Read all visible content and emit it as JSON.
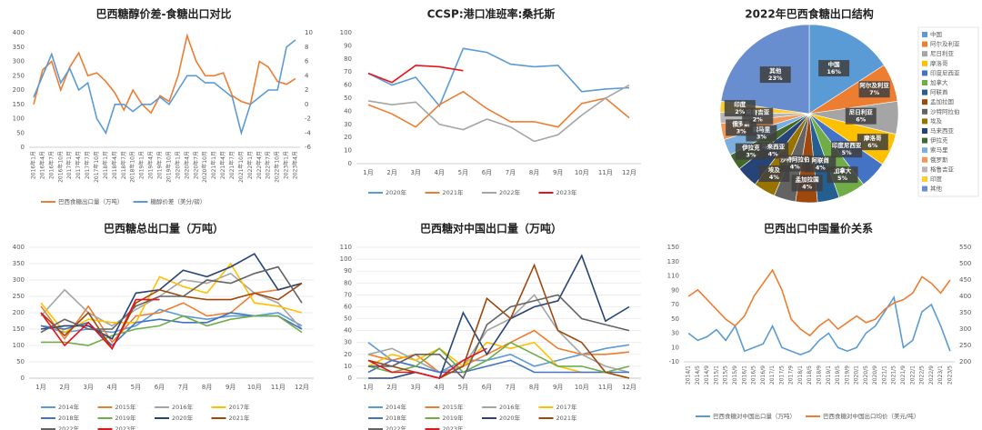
{
  "chart_data": [
    {
      "type": "line",
      "title": "巴西糖醇价差-食糖出口对比",
      "categories": [
        "2016年1月",
        "2016年4月",
        "2016年7月",
        "2016年10月",
        "2017年1月",
        "2017年4月",
        "2017年7月",
        "2017年10月",
        "2018年1月",
        "2018年4月",
        "2018年7月",
        "2018年10月",
        "2019年1月",
        "2019年4月",
        "2019年7月",
        "2019年10月",
        "2020年1月",
        "2020年4月",
        "2020年7月",
        "2020年10月",
        "2021年1月",
        "2021年4月",
        "2021年7月",
        "2021年10月",
        "2022年1月",
        "2022年4月",
        "2022年7月",
        "2022年10月",
        "2023年1月",
        "2023年4月"
      ],
      "ylim": [
        0,
        400
      ],
      "yticks": [
        0,
        50,
        100,
        150,
        200,
        250,
        300,
        350,
        400
      ],
      "y2lim": [
        -6,
        10
      ],
      "y2ticks": [
        -6,
        -4,
        -2,
        0,
        2,
        4,
        6,
        8,
        10
      ],
      "series": [
        {
          "name": "巴西食糖出口量（万吨）",
          "color": "#ed7d31",
          "values": [
            150,
            270,
            300,
            200,
            280,
            330,
            250,
            260,
            230,
            190,
            130,
            200,
            150,
            120,
            180,
            160,
            250,
            390,
            300,
            250,
            250,
            260,
            180,
            160,
            150,
            300,
            280,
            230,
            220,
            240
          ]
        },
        {
          "name": "糖醇价差（美分/磅）",
          "color": "#5b9bd5",
          "axis": "y2",
          "values": [
            1,
            4,
            7,
            3,
            5,
            2,
            3,
            -2,
            -4,
            0,
            0,
            -1,
            0,
            0,
            1,
            0,
            2,
            4,
            4,
            3,
            3,
            2,
            1,
            -4,
            0,
            1,
            2,
            2,
            8,
            9
          ]
        }
      ]
    },
    {
      "type": "line",
      "title": "CCSP:港口准班率:桑托斯",
      "categories": [
        "1月",
        "2月",
        "3月",
        "4月",
        "5月",
        "6月",
        "7月",
        "8月",
        "9月",
        "10月",
        "11月",
        "12月"
      ],
      "ylim": [
        0,
        100
      ],
      "yticks": [
        0,
        10,
        20,
        30,
        40,
        50,
        60,
        70,
        80,
        90,
        100
      ],
      "series": [
        {
          "name": "2020年",
          "color": "#5b9bd5",
          "values": [
            69,
            60,
            66,
            44,
            88,
            85,
            76,
            74,
            75,
            55,
            57,
            58
          ]
        },
        {
          "name": "2021年",
          "color": "#ed7d31",
          "values": [
            45,
            38,
            28,
            45,
            55,
            42,
            32,
            32,
            28,
            46,
            50,
            35
          ]
        },
        {
          "name": "2022年",
          "color": "#a5a5a5",
          "values": [
            48,
            45,
            47,
            30,
            26,
            34,
            28,
            17,
            22,
            37,
            50,
            60
          ]
        },
        {
          "name": "2023年",
          "color": "#e8141c",
          "values": [
            69,
            62,
            75,
            74,
            71,
            null,
            null,
            null,
            null,
            null,
            null,
            null
          ]
        }
      ]
    },
    {
      "type": "pie",
      "title": "2022年巴西食糖出口结构",
      "categories": [
        "中国",
        "阿尔及利亚",
        "尼日利亚",
        "摩洛哥",
        "印度尼西亚",
        "加拿大",
        "阿联酋",
        "孟加拉国",
        "沙特阿拉伯",
        "埃及",
        "马来西亚",
        "伊拉克",
        "索马里",
        "俄罗斯",
        "格鲁吉亚",
        "印度",
        "其他"
      ],
      "values": [
        16,
        7,
        6,
        6,
        5,
        5,
        4,
        4,
        4,
        4,
        4,
        3,
        3,
        3,
        2,
        2,
        23
      ],
      "value_labels": [
        "16%",
        "7%",
        "6%",
        "6%",
        "5%",
        "5%",
        "4%",
        "4%",
        "4%",
        "4%",
        "4%",
        "3%",
        "3%",
        "3%",
        "2%",
        "2%",
        "23%"
      ],
      "colors": [
        "#5b9bd5",
        "#ed7d31",
        "#a5a5a5",
        "#ffc000",
        "#4472c4",
        "#70ad47",
        "#255e91",
        "#9e480e",
        "#636363",
        "#997300",
        "#264478",
        "#43682b",
        "#7cafdd",
        "#f1975a",
        "#b7b7b7",
        "#ffcd33",
        "#698ed0"
      ]
    },
    {
      "type": "line",
      "title": "巴西糖总出口量（万吨）",
      "grid": true,
      "categories": [
        "1月",
        "2月",
        "3月",
        "4月",
        "5月",
        "6月",
        "7月",
        "8月",
        "9月",
        "10月",
        "11月",
        "12月"
      ],
      "ylim": [
        0,
        400
      ],
      "yticks": [
        0,
        50,
        100,
        150,
        200,
        250,
        300,
        350,
        400
      ],
      "series": [
        {
          "name": "2014年",
          "color": "#5b9bd5",
          "values": [
            160,
            140,
            150,
            140,
            160,
            210,
            190,
            180,
            190,
            190,
            200,
            160
          ]
        },
        {
          "name": "2015年",
          "color": "#ed7d31",
          "values": [
            220,
            120,
            220,
            110,
            190,
            200,
            230,
            190,
            200,
            260,
            270,
            290
          ]
        },
        {
          "name": "2016年",
          "color": "#a5a5a5",
          "values": [
            190,
            270,
            200,
            160,
            210,
            250,
            300,
            290,
            320,
            260,
            230,
            150
          ]
        },
        {
          "name": "2017年",
          "color": "#ffc000",
          "values": [
            230,
            140,
            180,
            170,
            170,
            310,
            280,
            260,
            350,
            230,
            220,
            200
          ]
        },
        {
          "name": "2018年",
          "color": "#4472c4",
          "values": [
            160,
            150,
            170,
            100,
            170,
            180,
            170,
            170,
            200,
            190,
            190,
            150
          ]
        },
        {
          "name": "2019年",
          "color": "#70ad47",
          "values": [
            110,
            110,
            100,
            130,
            150,
            160,
            190,
            160,
            180,
            190,
            190,
            140
          ]
        },
        {
          "name": "2020年",
          "color": "#264478",
          "values": [
            150,
            160,
            160,
            120,
            260,
            270,
            330,
            310,
            340,
            380,
            270,
            290
          ]
        },
        {
          "name": "2021年",
          "color": "#9e480e",
          "values": [
            200,
            130,
            200,
            90,
            230,
            270,
            250,
            240,
            240,
            260,
            240,
            290
          ]
        },
        {
          "name": "2022年",
          "color": "#636363",
          "values": [
            140,
            180,
            150,
            150,
            220,
            250,
            250,
            300,
            290,
            320,
            340,
            230
          ]
        },
        {
          "name": "2023年",
          "color": "#e8141c",
          "values": [
            200,
            100,
            170,
            90,
            240,
            240,
            null,
            null,
            null,
            null,
            null,
            null
          ]
        }
      ]
    },
    {
      "type": "line",
      "title": "巴西糖对中国出口量（万吨）",
      "grid": true,
      "categories": [
        "1月",
        "2月",
        "3月",
        "4月",
        "5月",
        "6月",
        "7月",
        "8月",
        "9月",
        "10月",
        "11月",
        "12月"
      ],
      "ylim": [
        0,
        110
      ],
      "yticks": [
        0,
        10,
        20,
        30,
        40,
        50,
        60,
        70,
        80,
        90,
        100,
        110
      ],
      "series": [
        {
          "name": "2014年",
          "color": "#5b9bd5",
          "values": [
            30,
            15,
            10,
            5,
            15,
            15,
            20,
            10,
            15,
            20,
            25,
            28
          ]
        },
        {
          "name": "2015年",
          "color": "#ed7d31",
          "values": [
            20,
            15,
            20,
            5,
            10,
            20,
            30,
            40,
            25,
            20,
            20,
            22
          ]
        },
        {
          "name": "2016年",
          "color": "#a5a5a5",
          "values": [
            20,
            25,
            15,
            5,
            10,
            40,
            50,
            70,
            40,
            20,
            10,
            5
          ]
        },
        {
          "name": "2017年",
          "color": "#ffc000",
          "values": [
            10,
            20,
            15,
            25,
            10,
            30,
            25,
            30,
            10,
            5,
            5,
            0
          ]
        },
        {
          "name": "2018年",
          "color": "#4472c4",
          "values": [
            5,
            15,
            10,
            5,
            5,
            10,
            15,
            5,
            5,
            5,
            5,
            5
          ]
        },
        {
          "name": "2019年",
          "color": "#70ad47",
          "values": [
            10,
            5,
            10,
            25,
            5,
            15,
            30,
            20,
            10,
            10,
            5,
            10
          ]
        },
        {
          "name": "2020年",
          "color": "#264478",
          "values": [
            0,
            0,
            5,
            0,
            55,
            20,
            50,
            60,
            65,
            103,
            48,
            60
          ]
        },
        {
          "name": "2021年",
          "color": "#9e480e",
          "values": [
            15,
            10,
            5,
            0,
            10,
            67,
            50,
            95,
            40,
            30,
            5,
            0
          ]
        },
        {
          "name": "2022年",
          "color": "#636363",
          "values": [
            10,
            10,
            20,
            20,
            0,
            45,
            60,
            65,
            70,
            50,
            45,
            40
          ]
        },
        {
          "name": "2023年",
          "color": "#e8141c",
          "values": [
            15,
            5,
            5,
            0,
            15,
            25,
            null,
            null,
            null,
            null,
            null,
            null
          ]
        }
      ]
    },
    {
      "type": "line",
      "title": "巴西出口中国量价关系",
      "categories": [
        "2014/1",
        "2014/5",
        "2014/9",
        "2015/1",
        "2015/5",
        "2015/9",
        "2016/1",
        "2016/5",
        "2016/9",
        "2017/1",
        "2017/5",
        "2017/9",
        "2018/1",
        "2018/5",
        "2018/9",
        "2019/1",
        "2019/5",
        "2019/9",
        "2020/1",
        "2020/5",
        "2020/9",
        "2021/1",
        "2021/5",
        "2021/9",
        "2022/1",
        "2022/5",
        "2022/9",
        "2023/1",
        "2023/5"
      ],
      "ylim": [
        -10,
        150
      ],
      "yticks": [
        -10,
        10,
        30,
        50,
        70,
        90,
        110,
        130,
        150
      ],
      "y2lim": [
        200,
        550
      ],
      "y2ticks": [
        200,
        250,
        300,
        350,
        400,
        450,
        500,
        550
      ],
      "series": [
        {
          "name": "巴西食糖对中国出口量（万吨）",
          "color": "#5b9bd5",
          "values": [
            30,
            20,
            25,
            35,
            20,
            40,
            5,
            10,
            15,
            40,
            10,
            5,
            0,
            5,
            20,
            30,
            10,
            5,
            10,
            30,
            40,
            60,
            80,
            10,
            20,
            60,
            70,
            40,
            5
          ]
        },
        {
          "name": "巴西食糖对中国出口均价（美元/吨）",
          "color": "#ed7d31",
          "axis": "y2",
          "values": [
            400,
            420,
            390,
            360,
            330,
            310,
            340,
            400,
            440,
            480,
            420,
            330,
            300,
            280,
            310,
            330,
            300,
            320,
            340,
            320,
            330,
            360,
            380,
            390,
            410,
            460,
            440,
            410,
            450
          ]
        }
      ]
    }
  ]
}
